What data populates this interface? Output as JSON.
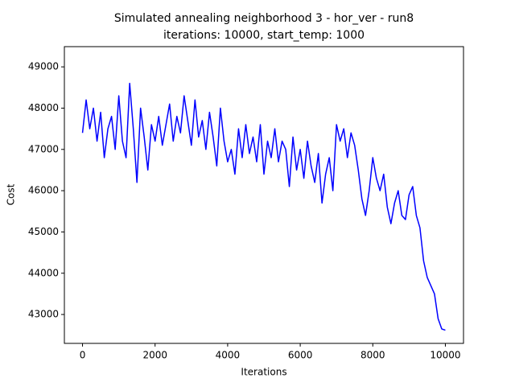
{
  "chart_data": {
    "type": "line",
    "title": "Simulated annealing neighborhood 3 - hor_ver - run8",
    "subtitle": "iterations: 10000, start_temp: 1000",
    "xlabel": "Iterations",
    "ylabel": "Cost",
    "x": [
      0,
      100,
      200,
      300,
      400,
      500,
      600,
      700,
      800,
      900,
      1000,
      1100,
      1200,
      1300,
      1400,
      1500,
      1600,
      1700,
      1800,
      1900,
      2000,
      2100,
      2200,
      2300,
      2400,
      2500,
      2600,
      2700,
      2800,
      2900,
      3000,
      3100,
      3200,
      3300,
      3400,
      3500,
      3600,
      3700,
      3800,
      3900,
      4000,
      4100,
      4200,
      4300,
      4400,
      4500,
      4600,
      4700,
      4800,
      4900,
      5000,
      5100,
      5200,
      5300,
      5400,
      5500,
      5600,
      5700,
      5800,
      5900,
      6000,
      6100,
      6200,
      6300,
      6400,
      6500,
      6600,
      6700,
      6800,
      6900,
      7000,
      7100,
      7200,
      7300,
      7400,
      7500,
      7600,
      7700,
      7800,
      7900,
      8000,
      8100,
      8200,
      8300,
      8400,
      8500,
      8600,
      8700,
      8800,
      8900,
      9000,
      9100,
      9200,
      9300,
      9400,
      9500,
      9600,
      9700,
      9800,
      9900,
      10000
    ],
    "series": [
      {
        "name": "Cost",
        "color": "#0000ff",
        "values": [
          47400,
          48200,
          47500,
          48000,
          47200,
          47900,
          46800,
          47500,
          47800,
          47000,
          48300,
          47200,
          46800,
          48600,
          47500,
          46200,
          48000,
          47300,
          46500,
          47600,
          47200,
          47800,
          47100,
          47600,
          48100,
          47200,
          47800,
          47400,
          48300,
          47700,
          47100,
          48200,
          47300,
          47700,
          47000,
          47900,
          47300,
          46600,
          48000,
          47200,
          46700,
          47000,
          46400,
          47500,
          46800,
          47600,
          46900,
          47300,
          46700,
          47600,
          46400,
          47200,
          46800,
          47500,
          46700,
          47200,
          47000,
          46100,
          47300,
          46500,
          47000,
          46300,
          47200,
          46600,
          46200,
          46900,
          45700,
          46400,
          46800,
          46000,
          47600,
          47200,
          47500,
          46800,
          47400,
          47100,
          46500,
          45800,
          45400,
          46000,
          46800,
          46300,
          46000,
          46400,
          45600,
          45200,
          45700,
          46000,
          45400,
          45300,
          45900,
          46100,
          45400,
          45100,
          44300,
          43900,
          43700,
          43500,
          42900,
          42650,
          42620
        ]
      }
    ],
    "xlim": [
      -500,
      10500
    ],
    "ylim": [
      42300,
      49490
    ],
    "xticks": [
      0,
      2000,
      4000,
      6000,
      8000,
      10000
    ],
    "yticks": [
      43000,
      44000,
      45000,
      46000,
      47000,
      48000,
      49000
    ]
  }
}
